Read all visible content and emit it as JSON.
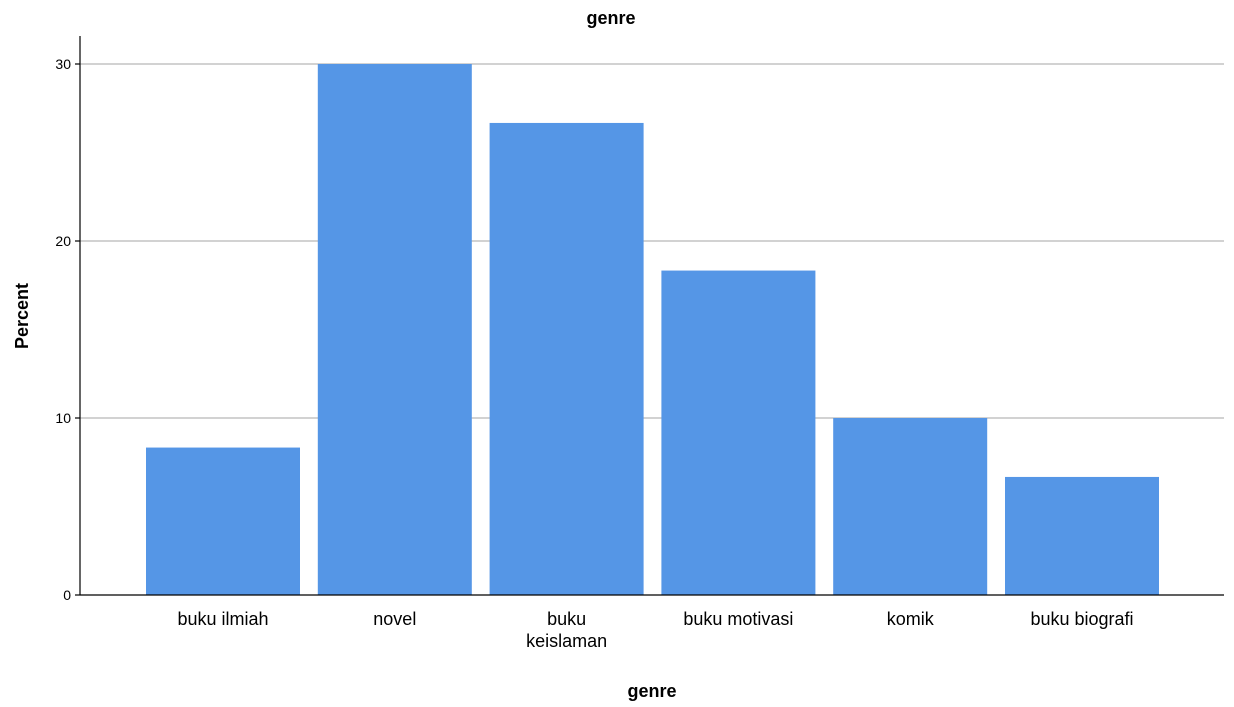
{
  "chart_data": {
    "type": "bar",
    "title": "genre",
    "xlabel": "genre",
    "ylabel": "Percent",
    "categories": [
      [
        "buku ilmiah"
      ],
      [
        "novel"
      ],
      [
        "buku",
        "keislaman"
      ],
      [
        "buku motivasi"
      ],
      [
        "komik"
      ],
      [
        "buku biografi"
      ]
    ],
    "values": [
      8.33,
      30.0,
      26.67,
      18.33,
      10.0,
      6.67
    ],
    "yticks": [
      0,
      10,
      20,
      30
    ],
    "ylim": [
      0,
      31.5
    ],
    "grid": true,
    "bar_color": "#5596e6"
  }
}
